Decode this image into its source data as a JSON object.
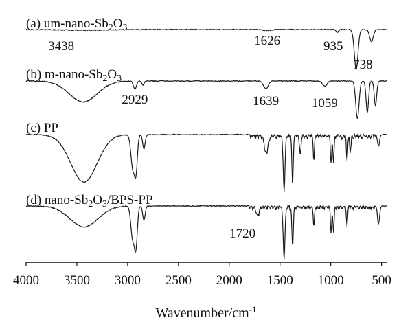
{
  "chart_data": {
    "type": "line",
    "xlabel": "Wavenumber/cm",
    "xlabel_superscript": "-1",
    "xlim": [
      4000,
      450
    ],
    "x_ticks": [
      4000,
      3500,
      3000,
      2500,
      2000,
      1500,
      1000,
      500
    ],
    "x_tick_labels": [
      "4000",
      "3500",
      "3000",
      "2500",
      "2000",
      "1500",
      "1000",
      "500"
    ],
    "y_axis": "hidden",
    "grid": false,
    "series": [
      {
        "label_parts": [
          {
            "t": "(a) um-nano-Sb"
          },
          {
            "t": "2",
            "sub": true
          },
          {
            "t": "O"
          },
          {
            "t": "3",
            "sub": true
          }
        ],
        "baseline": 1.0,
        "bands": [
          {
            "center": 3438,
            "depth": 0.012,
            "width": 260
          },
          {
            "center": 1626,
            "depth": 0.018,
            "width": 40
          },
          {
            "center": 935,
            "depth": 0.05,
            "width": 12
          },
          {
            "center": 750,
            "depth": 0.72,
            "width": 18
          },
          {
            "center": 600,
            "depth": 0.22,
            "width": 18
          }
        ],
        "peaks": [
          {
            "x": 3438,
            "label": "3438"
          },
          {
            "x": 1626,
            "label": "1626"
          },
          {
            "x": 935,
            "label": "935"
          }
        ]
      },
      {
        "label_parts": [
          {
            "t": "(b) m-nano-Sb"
          },
          {
            "t": "2",
            "sub": true
          },
          {
            "t": "O"
          },
          {
            "t": "3",
            "sub": true
          }
        ],
        "baseline": 1.0,
        "bands": [
          {
            "center": 3438,
            "depth": 0.32,
            "width": 140
          },
          {
            "center": 2929,
            "depth": 0.12,
            "width": 15
          },
          {
            "center": 2850,
            "depth": 0.06,
            "width": 12
          },
          {
            "center": 1639,
            "depth": 0.12,
            "width": 22
          },
          {
            "center": 1059,
            "depth": 0.08,
            "width": 22
          },
          {
            "center": 738,
            "depth": 0.58,
            "width": 16
          },
          {
            "center": 640,
            "depth": 0.48,
            "width": 12
          },
          {
            "center": 560,
            "depth": 0.38,
            "width": 12
          }
        ],
        "peaks": [
          {
            "x": 2929,
            "label": "2929"
          },
          {
            "x": 1639,
            "label": "1639"
          },
          {
            "x": 1059,
            "label": "1059"
          },
          {
            "x": 738,
            "label": "738"
          }
        ]
      },
      {
        "label_parts": [
          {
            "t": "(c) PP"
          }
        ],
        "baseline": 1.0,
        "bands": [
          {
            "center": 3430,
            "depth": 0.6,
            "width": 130
          },
          {
            "center": 2950,
            "depth": 0.42,
            "width": 18
          },
          {
            "center": 2918,
            "depth": 0.45,
            "width": 14
          },
          {
            "center": 2840,
            "depth": 0.18,
            "width": 12
          },
          {
            "center": 1635,
            "depth": 0.22,
            "width": 18
          },
          {
            "center": 1460,
            "depth": 0.68,
            "width": 9
          },
          {
            "center": 1376,
            "depth": 0.6,
            "width": 7
          },
          {
            "center": 1300,
            "depth": 0.25,
            "width": 7
          },
          {
            "center": 1167,
            "depth": 0.3,
            "width": 6
          },
          {
            "center": 997,
            "depth": 0.35,
            "width": 6
          },
          {
            "center": 973,
            "depth": 0.32,
            "width": 6
          },
          {
            "center": 841,
            "depth": 0.3,
            "width": 6
          },
          {
            "center": 808,
            "depth": 0.22,
            "width": 6
          },
          {
            "center": 530,
            "depth": 0.15,
            "width": 10
          }
        ],
        "peaks": []
      },
      {
        "label_parts": [
          {
            "t": "(d) nano-Sb"
          },
          {
            "t": "2",
            "sub": true
          },
          {
            "t": "O"
          },
          {
            "t": "3",
            "sub": true
          },
          {
            "t": "/BPS-PP"
          }
        ],
        "baseline": 1.0,
        "bands": [
          {
            "center": 3430,
            "depth": 0.32,
            "width": 140
          },
          {
            "center": 2950,
            "depth": 0.5,
            "width": 18
          },
          {
            "center": 2918,
            "depth": 0.58,
            "width": 14
          },
          {
            "center": 2840,
            "depth": 0.22,
            "width": 12
          },
          {
            "center": 1720,
            "depth": 0.14,
            "width": 14
          },
          {
            "center": 1460,
            "depth": 0.78,
            "width": 9
          },
          {
            "center": 1376,
            "depth": 0.6,
            "width": 7
          },
          {
            "center": 1167,
            "depth": 0.3,
            "width": 6
          },
          {
            "center": 997,
            "depth": 0.4,
            "width": 6
          },
          {
            "center": 973,
            "depth": 0.38,
            "width": 6
          },
          {
            "center": 841,
            "depth": 0.28,
            "width": 6
          },
          {
            "center": 530,
            "depth": 0.28,
            "width": 10
          }
        ],
        "peaks": [
          {
            "x": 1720,
            "label": "1720"
          }
        ]
      }
    ]
  }
}
